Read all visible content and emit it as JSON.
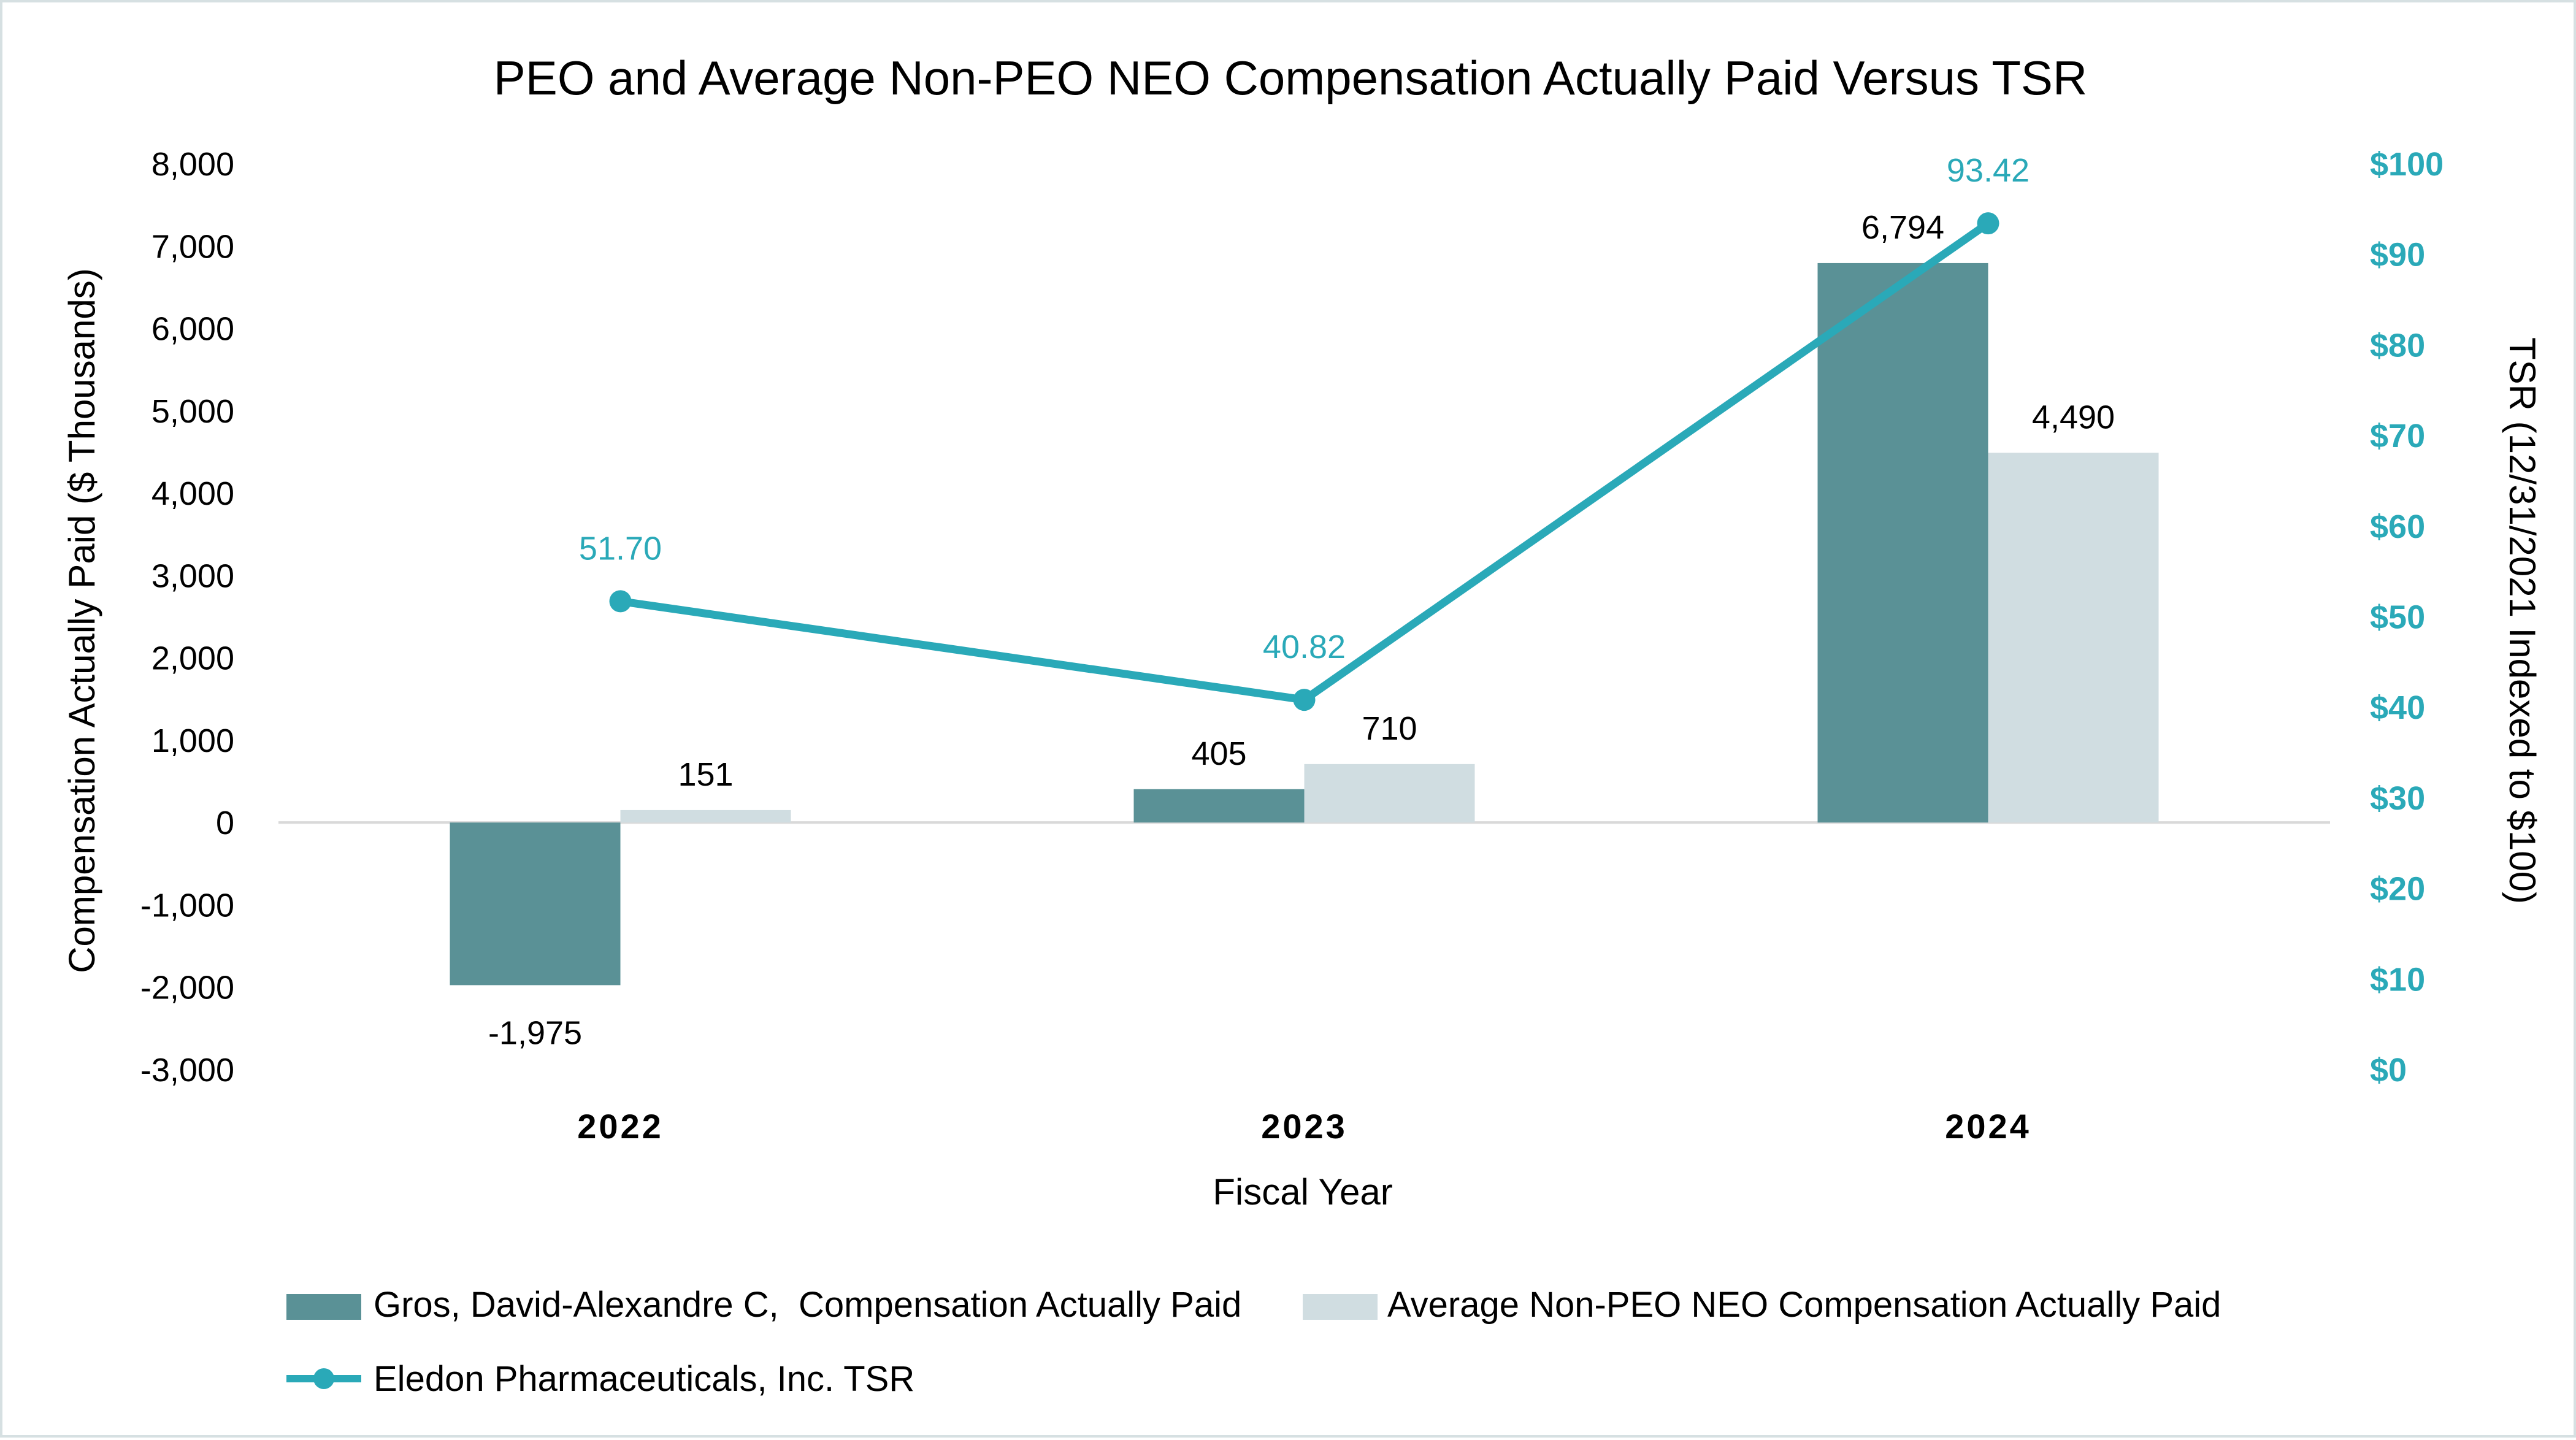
{
  "chart_data": {
    "type": "bar",
    "title": "PEO and Average Non-PEO NEO Compensation Actually Paid Versus TSR",
    "xlabel": "Fiscal Year",
    "ylabel": "Compensation Actually Paid ($ Thousands)",
    "y2label": "TSR (12/31/2021 Indexed to $100)",
    "categories": [
      "2022",
      "2023",
      "2024"
    ],
    "ylim": [
      -3000,
      8000
    ],
    "y2lim": [
      0,
      100
    ],
    "yticks": [
      "8,000",
      "7,000",
      "6,000",
      "5,000",
      "4,000",
      "3,000",
      "2,000",
      "1,000",
      "0",
      "-1,000",
      "-2,000",
      "-3,000"
    ],
    "y2ticks": [
      "$100",
      "$90",
      "$80",
      "$70",
      "$60",
      "$50",
      "$40",
      "$30",
      "$20",
      "$10",
      "$0"
    ],
    "grid": false,
    "legend_position": "bottom",
    "series": [
      {
        "name": "Gros, David-Alexandre C,  Compensation Actually Paid",
        "kind": "bar",
        "axis": "left",
        "color": "#5a9196",
        "values": [
          -1975,
          405,
          6794
        ],
        "labels": [
          "-1,975",
          "405",
          "6,794"
        ]
      },
      {
        "name": "Average Non-PEO NEO Compensation Actually Paid",
        "kind": "bar",
        "axis": "left",
        "color": "#d0dde1",
        "values": [
          151,
          710,
          4490
        ],
        "labels": [
          "151",
          "710",
          "4,490"
        ]
      },
      {
        "name": "Eledon Pharmaceuticals, Inc. TSR",
        "kind": "line",
        "axis": "right",
        "color": "#2aa9b8",
        "values": [
          51.7,
          40.82,
          93.42
        ],
        "labels": [
          "51.70",
          "40.82",
          "93.42"
        ]
      }
    ]
  }
}
